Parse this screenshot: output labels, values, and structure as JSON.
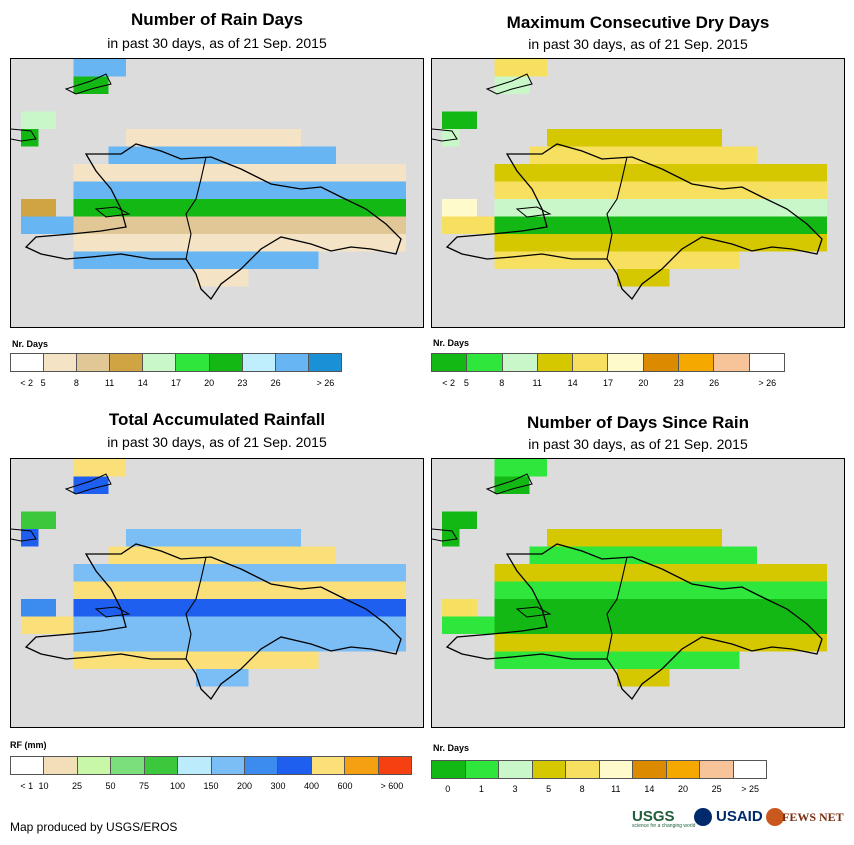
{
  "panels": [
    {
      "id": "rain_days",
      "title": "Number of Rain Days",
      "subtitle": "in past 30 days, as of 21 Sep. 2015",
      "legend_title": "Nr. Days",
      "legend_colors": [
        "#ffffff",
        "#f5e3c6",
        "#e2c796",
        "#d0a442",
        "#c9f7c9",
        "#2ee63c",
        "#14b814",
        "#bfeefc",
        "#67b6f3",
        "#1a90d6"
      ],
      "legend_labels": [
        "< 2",
        "5",
        "8",
        "11",
        "14",
        "17",
        "20",
        "23",
        "26",
        "> 26"
      ],
      "label_mode": "boundary"
    },
    {
      "id": "max_dry_days",
      "title": "Maximum Consecutive Dry Days",
      "subtitle": "in past 30 days, as of 21 Sep. 2015",
      "legend_title": "Nr. Days",
      "legend_colors": [
        "#14b814",
        "#2ee63c",
        "#c9f7c9",
        "#d6c800",
        "#f7e05f",
        "#fffacb",
        "#dc8a00",
        "#f5a800",
        "#f7c49a",
        "#ffffff"
      ],
      "legend_labels": [
        "< 2",
        "5",
        "8",
        "11",
        "14",
        "17",
        "20",
        "23",
        "26",
        "> 26"
      ],
      "label_mode": "boundary"
    },
    {
      "id": "total_rainfall",
      "title": "Total Accumulated Rainfall",
      "subtitle": "in past 30 days, as of 21 Sep. 2015",
      "legend_title": "RF (mm)",
      "legend_colors": [
        "#ffffff",
        "#f2deb8",
        "#c8f7a8",
        "#7be07b",
        "#3cc83c",
        "#bcecfb",
        "#7bbdf5",
        "#3c8cf0",
        "#1e5ff0",
        "#fbe07a",
        "#f5a010",
        "#f54012"
      ],
      "legend_labels": [
        "< 1",
        "10",
        "25",
        "50",
        "75",
        "100",
        "150",
        "200",
        "300",
        "400",
        "600",
        "> 600"
      ],
      "label_mode": "boundary"
    },
    {
      "id": "days_since_rain",
      "title": "Number of Days Since Rain",
      "subtitle": "in past 30 days, as of 21 Sep. 2015",
      "legend_title": "Nr. Days",
      "legend_colors": [
        "#14b814",
        "#2ee63c",
        "#c9f7c9",
        "#d6c800",
        "#f7e05f",
        "#fffacb",
        "#dc8a00",
        "#f5a800",
        "#f7c49a",
        "#ffffff"
      ],
      "legend_labels": [
        "0",
        "1",
        "3",
        "5",
        "8",
        "11",
        "14",
        "20",
        "25",
        "> 25"
      ],
      "label_mode": "centered"
    }
  ],
  "footer": "Map produced by USGS/EROS",
  "logos": {
    "usgs": "USGS",
    "usgs_tagline": "science for a changing world",
    "usaid": "USAID",
    "fews": "FEWS NET"
  },
  "colors": {
    "map_background": "#dcdcdc",
    "outline": "#000000"
  }
}
